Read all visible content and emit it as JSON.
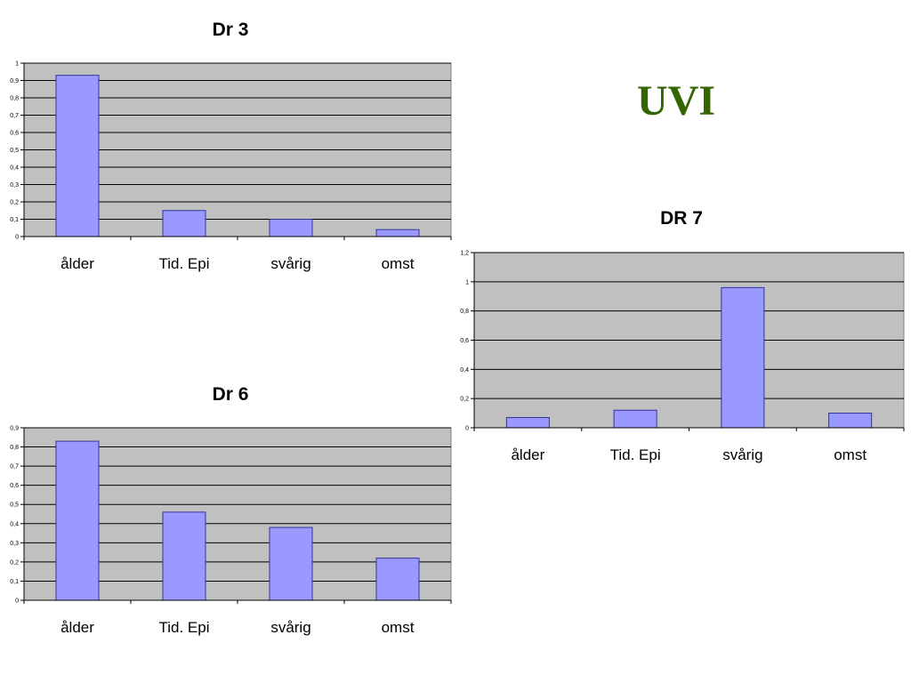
{
  "page": {
    "title": "UVI"
  },
  "colors": {
    "plot_bg": "#c0c0c0",
    "bar": "#9999ff",
    "bar_stroke": "#333399",
    "grid": "#000000",
    "title": "#336600"
  },
  "chart_data": [
    {
      "id": "dr3",
      "type": "bar",
      "title": "Dr 3",
      "categories": [
        "ålder",
        "Tid. Epi",
        "svårig",
        "omst"
      ],
      "values": [
        0.93,
        0.15,
        0.1,
        0.04
      ],
      "ylim": [
        0,
        1
      ],
      "yticks": [
        "0",
        "0,1",
        "0,2",
        "0,3",
        "0,4",
        "0,5",
        "0,6",
        "0,7",
        "0,8",
        "0,9",
        "1"
      ],
      "grid": true,
      "legend": "none"
    },
    {
      "id": "dr7",
      "type": "bar",
      "title": "DR 7",
      "categories": [
        "ålder",
        "Tid. Epi",
        "svårig",
        "omst"
      ],
      "values": [
        0.07,
        0.12,
        0.96,
        0.1
      ],
      "ylim": [
        0,
        1.2
      ],
      "yticks": [
        "0",
        "0,2",
        "0,4",
        "0,6",
        "0,8",
        "1",
        "1,2"
      ],
      "grid": true,
      "legend": "none"
    },
    {
      "id": "dr6",
      "type": "bar",
      "title": "Dr 6",
      "categories": [
        "ålder",
        "Tid. Epi",
        "svårig",
        "omst"
      ],
      "values": [
        0.83,
        0.46,
        0.38,
        0.22
      ],
      "ylim": [
        0,
        0.9
      ],
      "yticks": [
        "0",
        "0,1",
        "0,2",
        "0,3",
        "0,4",
        "0,5",
        "0,6",
        "0,7",
        "0,8",
        "0,9"
      ],
      "grid": true,
      "legend": "none"
    }
  ]
}
